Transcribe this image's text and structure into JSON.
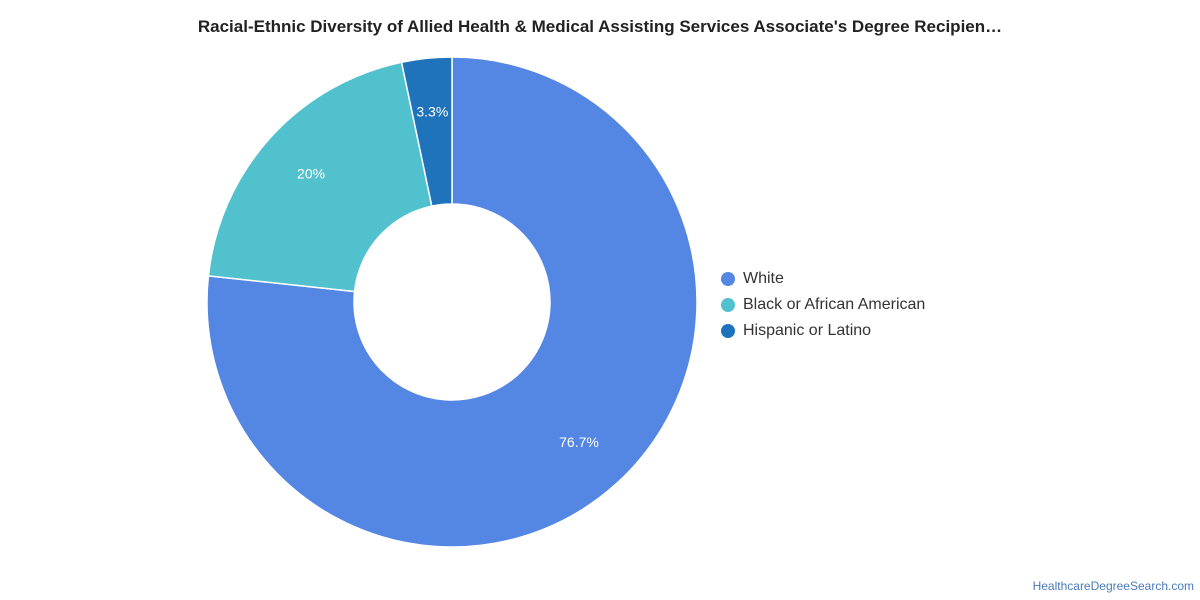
{
  "chart_data": {
    "type": "pie",
    "title": "Racial-Ethnic Diversity of Allied Health & Medical Assisting Services Associate's Degree Recipien…",
    "categories": [
      "White",
      "Black or African American",
      "Hispanic or Latino"
    ],
    "values": [
      76.7,
      20,
      3.3
    ],
    "labels": [
      "76.7%",
      "20%",
      "3.3%"
    ],
    "colors": [
      "#5486e3",
      "#50c1cd",
      "#1f73bb"
    ],
    "donut": true,
    "legend_position": "right"
  },
  "source": {
    "text": "HealthcareDegreeSearch.com"
  }
}
